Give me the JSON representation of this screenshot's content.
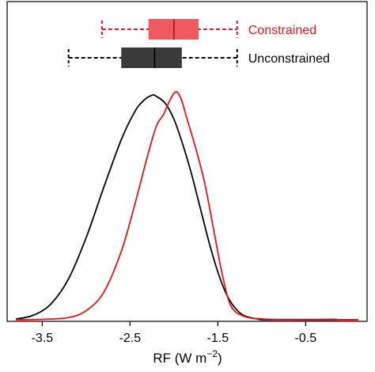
{
  "chart_data": {
    "type": "density",
    "xlabel": "RF (W m",
    "xlabel_superscript": "−2",
    "xlabel_suffix": ")",
    "xlim": [
      -3.9,
      0.2
    ],
    "x_ticks": [
      -3.5,
      -2.5,
      -1.5,
      -0.5
    ],
    "x_tick_labels": [
      "-3.5",
      "-2.5",
      "-1.5",
      "-0.5"
    ],
    "series": [
      {
        "name": "Constrained",
        "color": "#e8141c",
        "box_color": "#ef5a5f",
        "box": {
          "whisker_low": -2.82,
          "q1": -2.29,
          "median": -2.0,
          "q3": -1.72,
          "whisker_high": -1.28
        },
        "density": [
          [
            -3.8,
            0.0
          ],
          [
            -3.5,
            0.002
          ],
          [
            -3.2,
            0.01
          ],
          [
            -3.0,
            0.04
          ],
          [
            -2.8,
            0.12
          ],
          [
            -2.6,
            0.3
          ],
          [
            -2.45,
            0.5
          ],
          [
            -2.3,
            0.72
          ],
          [
            -2.2,
            0.85
          ],
          [
            -2.12,
            0.9
          ],
          [
            -2.05,
            0.96
          ],
          [
            -1.98,
            1.0
          ],
          [
            -1.92,
            0.97
          ],
          [
            -1.85,
            0.88
          ],
          [
            -1.75,
            0.75
          ],
          [
            -1.65,
            0.6
          ],
          [
            -1.55,
            0.4
          ],
          [
            -1.45,
            0.2
          ],
          [
            -1.35,
            0.06
          ],
          [
            -1.2,
            0.015
          ],
          [
            -1.0,
            0.004
          ],
          [
            -0.7,
            0.001
          ],
          [
            -0.2,
            0.002
          ],
          [
            -0.1,
            0.0
          ],
          [
            0.1,
            0.0
          ]
        ]
      },
      {
        "name": "Unconstrained",
        "color": "#000000",
        "box_color": "#3a3a3a",
        "box": {
          "whisker_low": -3.2,
          "q1": -2.6,
          "median": -2.22,
          "q3": -1.91,
          "whisker_high": -1.28
        },
        "density": [
          [
            -3.8,
            0.003
          ],
          [
            -3.6,
            0.02
          ],
          [
            -3.4,
            0.07
          ],
          [
            -3.2,
            0.18
          ],
          [
            -3.0,
            0.36
          ],
          [
            -2.8,
            0.58
          ],
          [
            -2.6,
            0.79
          ],
          [
            -2.45,
            0.91
          ],
          [
            -2.35,
            0.96
          ],
          [
            -2.25,
            0.985
          ],
          [
            -2.2,
            0.98
          ],
          [
            -2.1,
            0.95
          ],
          [
            -2.0,
            0.88
          ],
          [
            -1.9,
            0.77
          ],
          [
            -1.8,
            0.64
          ],
          [
            -1.7,
            0.49
          ],
          [
            -1.6,
            0.34
          ],
          [
            -1.5,
            0.21
          ],
          [
            -1.4,
            0.11
          ],
          [
            -1.3,
            0.05
          ],
          [
            -1.2,
            0.018
          ],
          [
            -1.05,
            0.004
          ],
          [
            -0.9,
            0.0
          ],
          [
            0.1,
            0.0
          ]
        ]
      }
    ],
    "grid": false,
    "legend": "top-right"
  }
}
